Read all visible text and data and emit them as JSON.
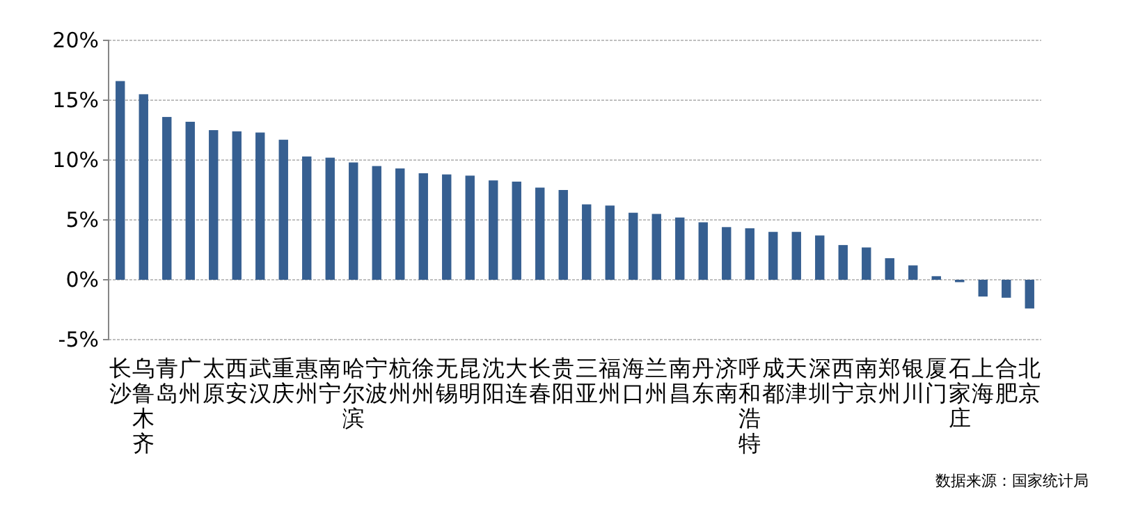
{
  "chart_data": {
    "type": "bar",
    "categories": [
      "长沙",
      "乌鲁木齐",
      "青岛",
      "广州",
      "太原",
      "西安",
      "武汉",
      "重庆",
      "惠州",
      "南宁",
      "哈尔滨",
      "宁波",
      "杭州",
      "徐州",
      "无锡",
      "昆明",
      "沈阳",
      "大连",
      "长春",
      "贵阳",
      "三亚",
      "福州",
      "海口",
      "兰州",
      "南昌",
      "丹东",
      "济南",
      "呼和浩特",
      "成都",
      "天津",
      "深圳",
      "西宁",
      "南京",
      "郑州",
      "银川",
      "厦门",
      "石家庄",
      "上海",
      "合肥",
      "北京"
    ],
    "values": [
      16.6,
      15.5,
      13.6,
      13.2,
      12.5,
      12.4,
      12.3,
      11.7,
      10.3,
      10.2,
      9.8,
      9.5,
      9.3,
      8.9,
      8.8,
      8.7,
      8.3,
      8.2,
      7.7,
      7.5,
      6.3,
      6.2,
      5.6,
      5.5,
      5.2,
      4.8,
      4.4,
      4.3,
      4.0,
      4.0,
      3.7,
      2.9,
      2.7,
      1.8,
      1.2,
      0.3,
      -0.2,
      -1.4,
      -1.5,
      -2.4
    ],
    "color": "#365f91",
    "ylim": [
      -5,
      20
    ],
    "yticks": [
      {
        "value": -5,
        "label": "-5%"
      },
      {
        "value": 0,
        "label": "0%"
      },
      {
        "value": 5,
        "label": "5%"
      },
      {
        "value": 10,
        "label": "10%"
      },
      {
        "value": 15,
        "label": "15%"
      },
      {
        "value": 20,
        "label": "20%"
      }
    ],
    "grid": "y",
    "annotations": [
      "数据来源：国家统计局"
    ]
  }
}
